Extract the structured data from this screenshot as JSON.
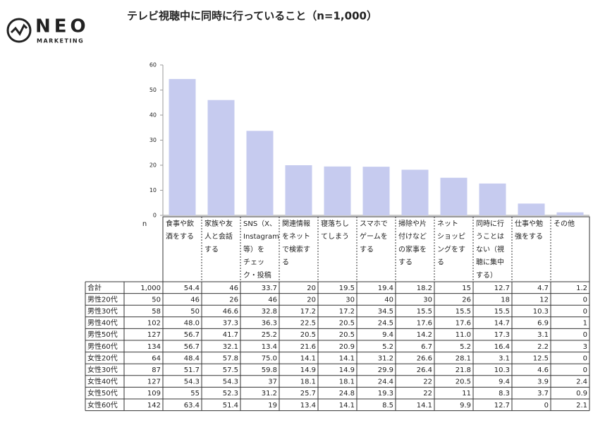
{
  "logo": {
    "name": "NEO",
    "sub": "MARKETING"
  },
  "chart_data": {
    "type": "bar",
    "title": "テレビ視聴中に同時に行っていること（n=1,000）",
    "color": "#c6cbef",
    "ylim": [
      0,
      60
    ],
    "yticks": [
      0,
      10,
      20,
      30,
      40,
      50,
      60
    ],
    "n_label": "n",
    "categories": [
      [
        "食事や飲",
        "酒をする"
      ],
      [
        "家族や友",
        "人と会話",
        "する"
      ],
      [
        "SNS（X、",
        "Instagram",
        "等）を",
        "チェッ",
        "ク・投稿"
      ],
      [
        "関連情報",
        "をネット",
        "で検索す",
        "る"
      ],
      [
        "寝落ちし",
        "てしまう"
      ],
      [
        "スマホで",
        "ゲームを",
        "する"
      ],
      [
        "掃除や片",
        "付けなど",
        "の家事を",
        "する"
      ],
      [
        "ネット",
        "ショッピ",
        "ングをす",
        "る"
      ],
      [
        "同時に行",
        "うことは",
        "ない（視",
        "聴に集中",
        "する）"
      ],
      [
        "仕事や勉",
        "強をする"
      ],
      [
        "その他"
      ]
    ],
    "rows": [
      {
        "label": "合計",
        "n": {
          "value": 1000,
          "label": "1,000"
        },
        "values": [
          54.4,
          46,
          33.7,
          20,
          19.5,
          19.4,
          18.2,
          15,
          12.7,
          4.7,
          1.2
        ]
      },
      {
        "label": "男性20代",
        "n": 50,
        "values": [
          46,
          26,
          46,
          20,
          30,
          40,
          30,
          26,
          18,
          12,
          0
        ]
      },
      {
        "label": "男性30代",
        "n": 58,
        "values": [
          50,
          46.6,
          32.8,
          17.2,
          17.2,
          34.5,
          15.5,
          15.5,
          15.5,
          10.3,
          0
        ]
      },
      {
        "label": "男性40代",
        "n": 102,
        "values": [
          {
            "value": 48,
            "label": "48.0"
          },
          37.3,
          36.3,
          22.5,
          20.5,
          24.5,
          17.6,
          17.6,
          14.7,
          6.9,
          1
        ]
      },
      {
        "label": "男性50代",
        "n": 127,
        "values": [
          56.7,
          41.7,
          25.2,
          20.5,
          20.5,
          9.4,
          14.2,
          {
            "value": 11,
            "label": "11.0"
          },
          17.3,
          3.1,
          0
        ]
      },
      {
        "label": "男性60代",
        "n": 134,
        "values": [
          56.7,
          32.1,
          13.4,
          21.6,
          20.9,
          5.2,
          6.7,
          5.2,
          16.4,
          2.2,
          3
        ]
      },
      {
        "label": "女性20代",
        "n": 64,
        "values": [
          48.4,
          57.8,
          {
            "value": 75,
            "label": "75.0"
          },
          14.1,
          14.1,
          31.2,
          26.6,
          28.1,
          3.1,
          12.5,
          0
        ]
      },
      {
        "label": "女性30代",
        "n": 87,
        "values": [
          51.7,
          57.5,
          59.8,
          14.9,
          14.9,
          29.9,
          26.4,
          21.8,
          10.3,
          4.6,
          0
        ]
      },
      {
        "label": "女性40代",
        "n": 127,
        "values": [
          54.3,
          54.3,
          37,
          18.1,
          18.1,
          24.4,
          22,
          20.5,
          9.4,
          3.9,
          2.4
        ]
      },
      {
        "label": "女性50代",
        "n": 109,
        "values": [
          55,
          52.3,
          31.2,
          25.7,
          24.8,
          19.3,
          22,
          11,
          8.3,
          3.7,
          0.9
        ]
      },
      {
        "label": "女性60代",
        "n": 142,
        "values": [
          63.4,
          51.4,
          19,
          13.4,
          14.1,
          8.5,
          14.1,
          9.9,
          12.7,
          0,
          2.1
        ]
      }
    ]
  }
}
